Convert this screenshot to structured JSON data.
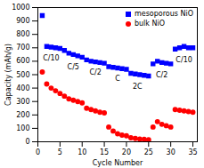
{
  "chart_data": {
    "type": "scatter",
    "x_label": "Cycle Number",
    "y_label": "Capacity (mAh/g)",
    "x": [
      1,
      2,
      3,
      4,
      5,
      6,
      7,
      8,
      9,
      10,
      11,
      12,
      13,
      14,
      15,
      16,
      17,
      18,
      19,
      20,
      21,
      22,
      23,
      24,
      25,
      26,
      27,
      28,
      29,
      30,
      31,
      32,
      33,
      34,
      35
    ],
    "series": [
      {
        "name": "mesoporous NiO",
        "color": "#0000ff",
        "marker": "square",
        "values": [
          940,
          710,
          705,
          700,
          695,
          680,
          660,
          650,
          640,
          630,
          610,
          600,
          595,
          590,
          585,
          560,
          555,
          550,
          545,
          540,
          510,
          505,
          500,
          495,
          490,
          580,
          600,
          590,
          585,
          580,
          690,
          700,
          710,
          700,
          700
        ]
      },
      {
        "name": "bulk NiO",
        "color": "#ff0000",
        "marker": "circle",
        "values": [
          520,
          430,
          400,
          380,
          360,
          340,
          320,
          310,
          300,
          290,
          250,
          240,
          230,
          220,
          215,
          110,
          80,
          60,
          50,
          45,
          30,
          25,
          20,
          18,
          15,
          110,
          150,
          130,
          120,
          110,
          240,
          235,
          230,
          225,
          220
        ]
      }
    ],
    "annotations": [
      {
        "text": "C/10",
        "x": 3,
        "y": 620
      },
      {
        "text": "C/5",
        "x": 8,
        "y": 560
      },
      {
        "text": "C/2",
        "x": 13,
        "y": 520
      },
      {
        "text": "C",
        "x": 18,
        "y": 470
      },
      {
        "text": "2C",
        "x": 22.5,
        "y": 410
      },
      {
        "text": "C/2",
        "x": 28,
        "y": 500
      },
      {
        "text": "C/10",
        "x": 33,
        "y": 610
      }
    ],
    "xlim": [
      0,
      36
    ],
    "xticks": [
      0,
      5,
      10,
      15,
      20,
      25,
      30,
      35
    ],
    "ylim": [
      0,
      1000
    ],
    "yticks": [
      0,
      100,
      200,
      300,
      400,
      500,
      600,
      700,
      800,
      900,
      1000
    ],
    "legend": "upper right",
    "grid": false
  }
}
